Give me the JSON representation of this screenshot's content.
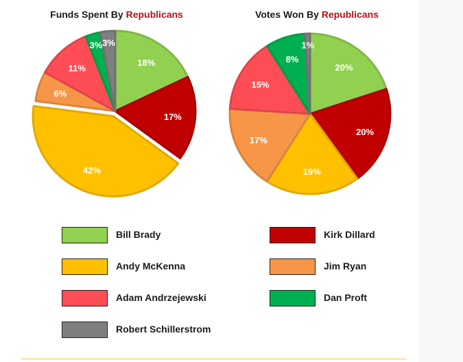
{
  "chart_data": [
    {
      "type": "pie",
      "title_prefix": "Funds Spent By ",
      "title_highlight": "Republicans",
      "slices": [
        {
          "label": "Bill Brady",
          "value": 18,
          "display": "18%",
          "color": "#92d050"
        },
        {
          "label": "Kirk Dillard",
          "value": 17,
          "display": "17%",
          "color": "#c00000"
        },
        {
          "label": "Andy McKenna",
          "value": 42,
          "display": "42%",
          "color": "#ffc000",
          "exploded": true
        },
        {
          "label": "Jim Ryan",
          "value": 6,
          "display": "6%",
          "color": "#f79646"
        },
        {
          "label": "Adam Andrzejewski",
          "value": 11,
          "display": "11%",
          "color": "#ff4d55"
        },
        {
          "label": "Dan Proft",
          "value": 3,
          "display": "3%",
          "color": "#00b050"
        },
        {
          "label": "Robert Schillerstrom",
          "value": 3,
          "display": "3%",
          "color": "#7f7f7f"
        }
      ]
    },
    {
      "type": "pie",
      "title_prefix": "Votes Won By ",
      "title_highlight": "Republicans",
      "slices": [
        {
          "label": "Bill Brady",
          "value": 20,
          "display": "20%",
          "color": "#92d050"
        },
        {
          "label": "Kirk Dillard",
          "value": 20,
          "display": "20%",
          "color": "#c00000"
        },
        {
          "label": "Andy McKenna",
          "value": 19,
          "display": "19%",
          "color": "#ffc000"
        },
        {
          "label": "Jim Ryan",
          "value": 17,
          "display": "17%",
          "color": "#f79646"
        },
        {
          "label": "Adam Andrzejewski",
          "value": 15,
          "display": "15%",
          "color": "#ff4d55"
        },
        {
          "label": "Dan Proft",
          "value": 8,
          "display": "8%",
          "color": "#00b050"
        },
        {
          "label": "Robert Schillerstrom",
          "value": 1,
          "display": "1%",
          "color": "#7f7f7f"
        }
      ]
    }
  ],
  "legend": {
    "items": [
      {
        "label": "Bill Brady",
        "color": "#92d050"
      },
      {
        "label": "Kirk Dillard",
        "color": "#c00000"
      },
      {
        "label": "Andy McKenna",
        "color": "#ffc000"
      },
      {
        "label": "Jim Ryan",
        "color": "#f79646"
      },
      {
        "label": "Adam Andrzejewski",
        "color": "#ff4d55"
      },
      {
        "label": "Dan Proft",
        "color": "#00b050"
      },
      {
        "label": "Robert Schillerstrom",
        "color": "#7f7f7f"
      }
    ]
  }
}
